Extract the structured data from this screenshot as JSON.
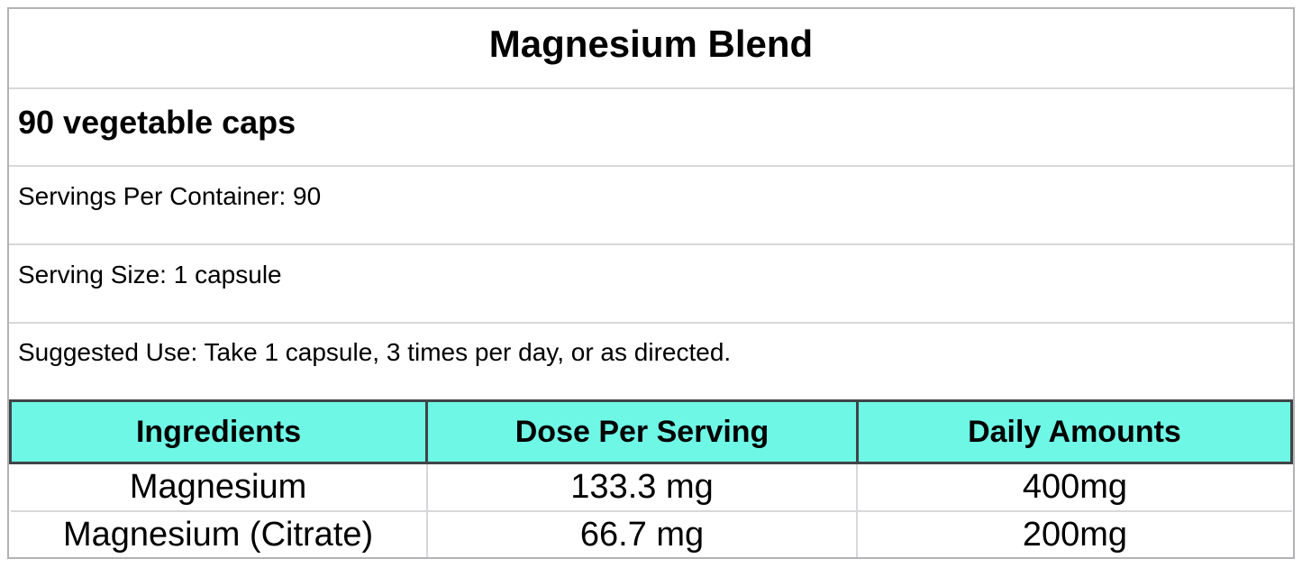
{
  "label": {
    "title": "Magnesium Blend",
    "subtitle": "90 vegetable caps",
    "servings_per_container": "Servings Per Container: 90",
    "serving_size": "Serving Size: 1 capsule",
    "suggested_use": "Suggested Use: Take 1 capsule, 3 times per day, or as directed."
  },
  "table": {
    "headers": [
      "Ingredients",
      "Dose Per Serving",
      "Daily Amounts"
    ],
    "rows": [
      {
        "ingredient": "Magnesium",
        "dose": "133.3 mg",
        "daily": "400mg"
      },
      {
        "ingredient": "Magnesium (Citrate)",
        "dose": "66.7 mg",
        "daily": "200mg"
      }
    ]
  },
  "colors": {
    "header_bg": "#6ff7e6",
    "header_border": "#3f4447",
    "outer_border": "#b3b3b5",
    "inner_border": "#d8d8da",
    "text": "#000000",
    "background": "#ffffff"
  }
}
